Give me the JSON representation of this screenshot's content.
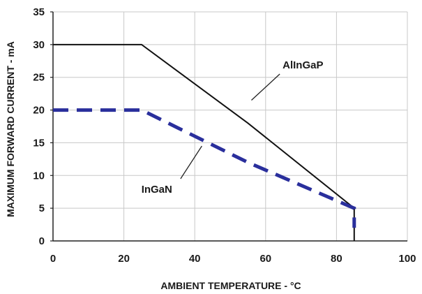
{
  "chart_data": {
    "type": "line",
    "xlabel": "AMBIENT TEMPERATURE - °C",
    "ylabel": "MAXIMUM FORWARD CURRENT - mA",
    "xlim": [
      0,
      100
    ],
    "ylim": [
      0,
      35
    ],
    "xticks": [
      0,
      20,
      40,
      60,
      80,
      100
    ],
    "yticks": [
      0,
      5,
      10,
      15,
      20,
      25,
      30,
      35
    ],
    "grid": "vertical and horizontal, light gray",
    "series": [
      {
        "name": "AlInGaP",
        "color": "#111111",
        "style": "solid",
        "x": [
          0,
          25,
          55,
          85,
          85
        ],
        "y": [
          30,
          30,
          18,
          5,
          0
        ]
      },
      {
        "name": "InGaN",
        "color": "#2a2f9c",
        "style": "dashed",
        "x": [
          0,
          25,
          55,
          85,
          85
        ],
        "y": [
          20,
          20,
          12,
          5,
          2
        ]
      }
    ],
    "annotations": [
      {
        "text": "AlInGaP",
        "series": "AlInGaP",
        "at": [
          56,
          21.5
        ],
        "pointer_from": [
          64,
          25.5
        ]
      },
      {
        "text": "InGaN",
        "series": "InGaN",
        "at": [
          42,
          14.5
        ],
        "pointer_from": [
          36,
          9.5
        ]
      }
    ]
  }
}
